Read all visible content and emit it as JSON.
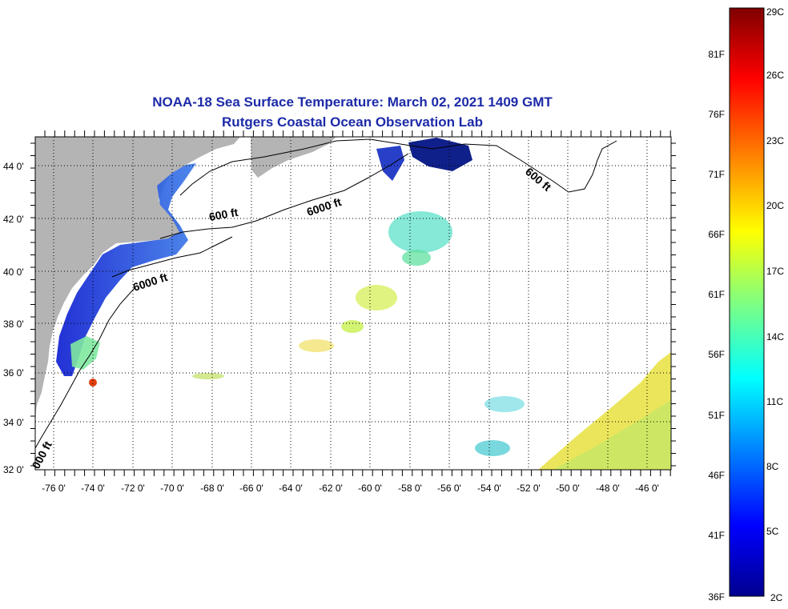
{
  "title": {
    "line1": "NOAA-18 Sea Surface Temperature:  March 02, 2021 1409 GMT",
    "line2": "Rutgers Coastal Ocean Observation Lab"
  },
  "map": {
    "lon_range": [
      -77,
      -44.5
    ],
    "lat_range": [
      32,
      45
    ],
    "lat_ticks": [
      "44 0'",
      "42 0'",
      "40 0'",
      "38 0'",
      "36 0'",
      "34 0'",
      "32 0'"
    ],
    "lon_ticks": [
      "-76 0'",
      "-74 0'",
      "-72 0'",
      "-70 0'",
      "-68 0'",
      "-66 0'",
      "-64 0'",
      "-62 0'",
      "-60 0'",
      "-58 0'",
      "-56 0'",
      "-54 0'",
      "-52 0'",
      "-50 0'",
      "-48 0'",
      "-46 0'"
    ],
    "contour_labels": [
      "600 ft",
      "6000 ft",
      "6000 ft",
      "600 ft",
      "000 ft"
    ],
    "land_color": "#b4b4b4",
    "grid": "dotted"
  },
  "colorbar": {
    "celsius_labels": [
      "29C",
      "26C",
      "23C",
      "20C",
      "17C",
      "14C",
      "11C",
      "8C",
      "5C",
      "2C"
    ],
    "fahrenheit_labels": [
      "81F",
      "76F",
      "71F",
      "66F",
      "61F",
      "56F",
      "51F",
      "46F",
      "41F",
      "36F"
    ],
    "colors": [
      "#7f0000",
      "#ff0000",
      "#ff8000",
      "#ffff00",
      "#80ff80",
      "#00ffff",
      "#0080ff",
      "#0000ff",
      "#00008f"
    ]
  }
}
